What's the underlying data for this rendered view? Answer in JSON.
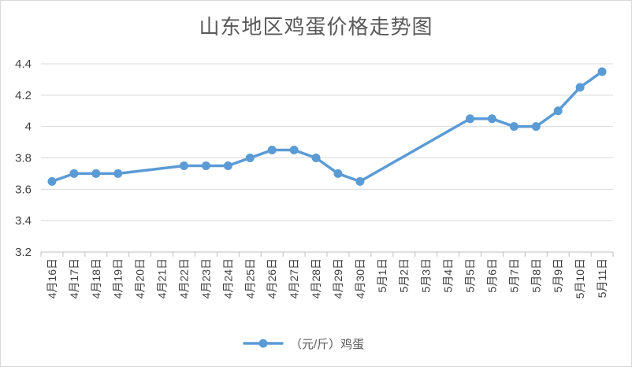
{
  "chart_data": {
    "type": "line",
    "title": "山东地区鸡蛋价格走势图",
    "xlabel": "",
    "ylabel": "",
    "ylim": [
      3.2,
      4.4
    ],
    "yticks": [
      "3.2",
      "3.4",
      "3.6",
      "3.8",
      "4",
      "4.2",
      "4.4"
    ],
    "categories": [
      "4月16日",
      "4月17日",
      "4月18日",
      "4月19日",
      "4月20日",
      "4月21日",
      "4月22日",
      "4月23日",
      "4月24日",
      "4月25日",
      "4月26日",
      "4月27日",
      "4月28日",
      "4月29日",
      "4月30日",
      "5月1日",
      "5月2日",
      "5月3日",
      "5月4日",
      "5月5日",
      "5月6日",
      "5月7日",
      "5月8日",
      "5月9日",
      "5月10日",
      "5月11日"
    ],
    "series": [
      {
        "name": "（元/斤）鸡蛋",
        "color": "#5b9bd5",
        "points": [
          {
            "x": "4月16日",
            "y": 3.65
          },
          {
            "x": "4月17日",
            "y": 3.7
          },
          {
            "x": "4月18日",
            "y": 3.7
          },
          {
            "x": "4月19日",
            "y": 3.7
          },
          {
            "x": "4月22日",
            "y": 3.75
          },
          {
            "x": "4月23日",
            "y": 3.75
          },
          {
            "x": "4月24日",
            "y": 3.75
          },
          {
            "x": "4月25日",
            "y": 3.8
          },
          {
            "x": "4月26日",
            "y": 3.85
          },
          {
            "x": "4月27日",
            "y": 3.85
          },
          {
            "x": "4月28日",
            "y": 3.8
          },
          {
            "x": "4月29日",
            "y": 3.7
          },
          {
            "x": "4月30日",
            "y": 3.65
          },
          {
            "x": "5月5日",
            "y": 4.05
          },
          {
            "x": "5月6日",
            "y": 4.05
          },
          {
            "x": "5月7日",
            "y": 4.0
          },
          {
            "x": "5月8日",
            "y": 4.0
          },
          {
            "x": "5月9日",
            "y": 4.1
          },
          {
            "x": "5月10日",
            "y": 4.25
          },
          {
            "x": "5月11日",
            "y": 4.35
          }
        ]
      }
    ],
    "grid": true,
    "legend_position": "bottom"
  }
}
